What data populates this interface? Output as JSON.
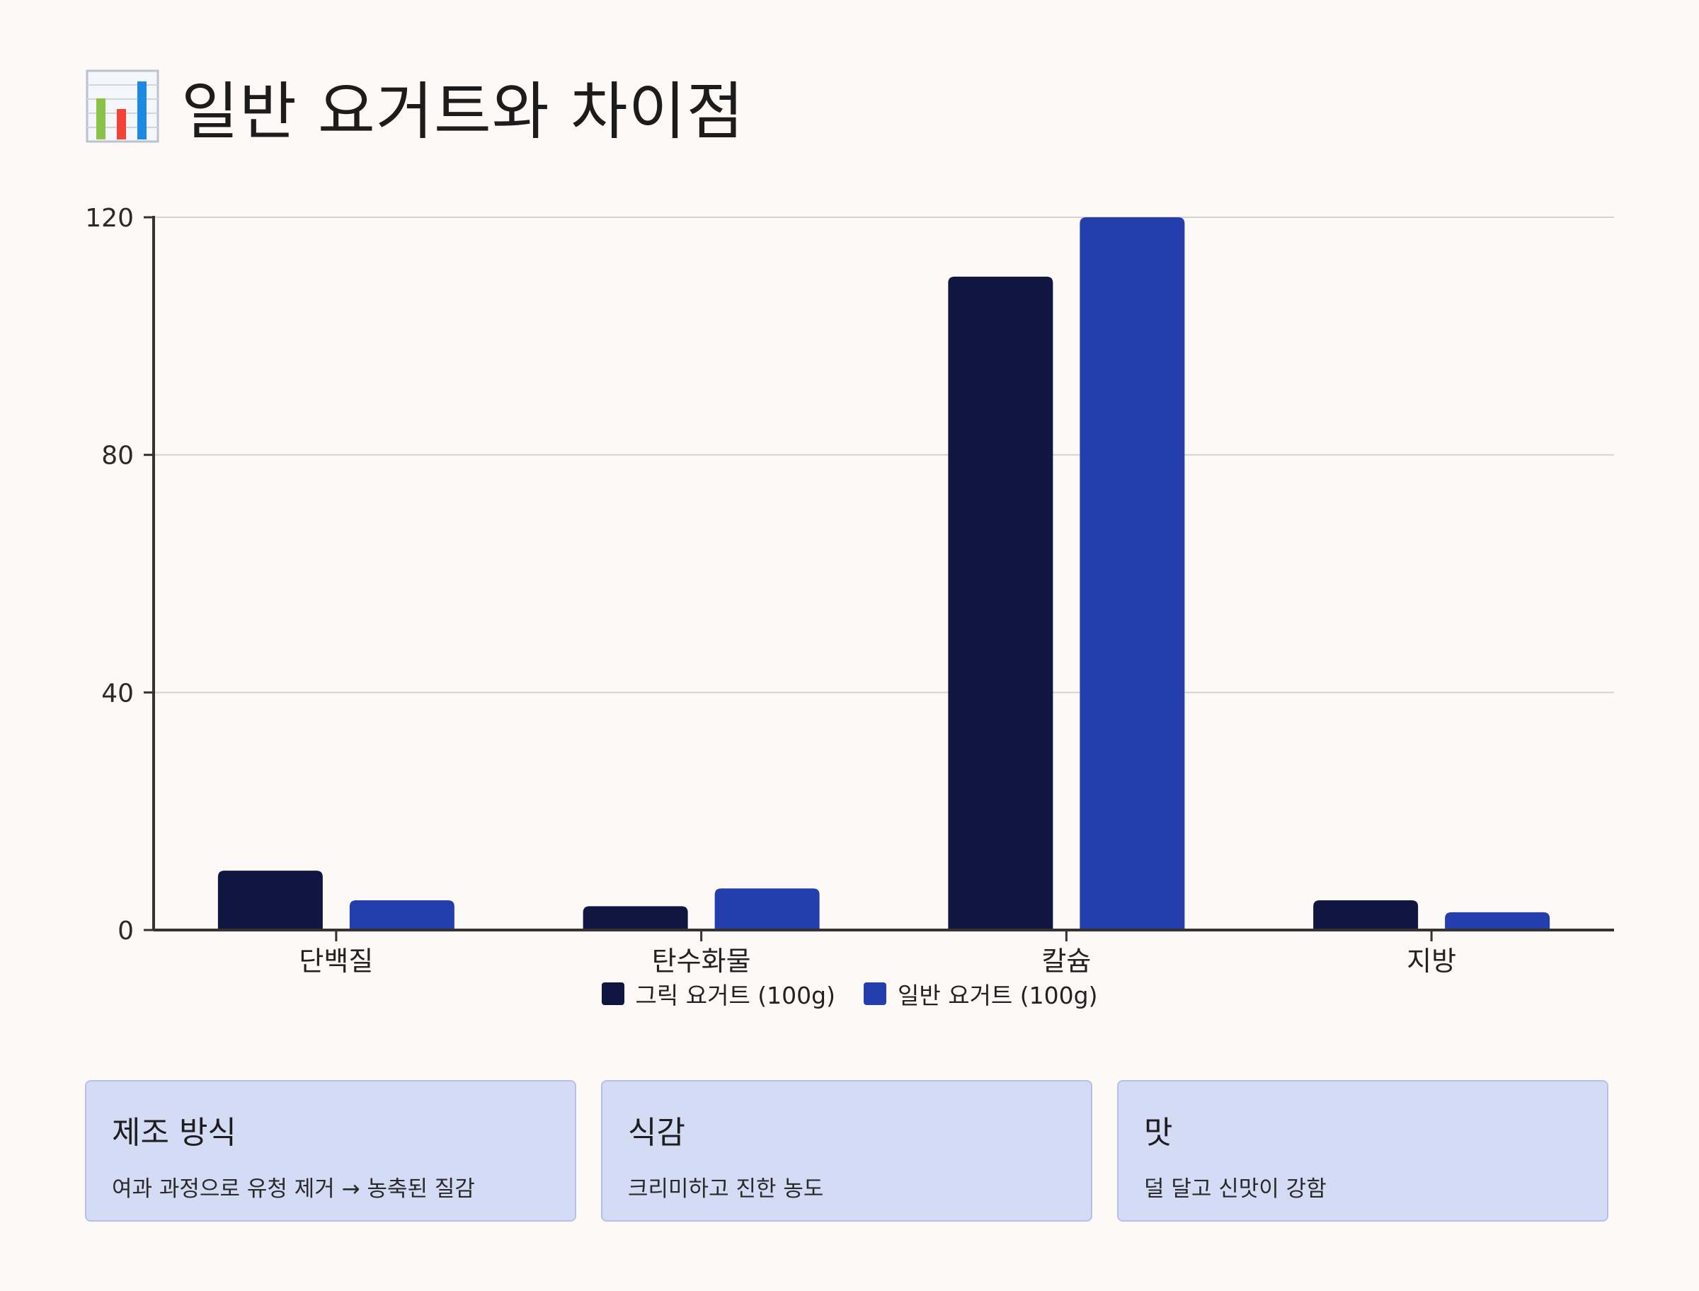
{
  "header": {
    "icon": "bar-chart-icon",
    "title": "일반 요거트와 차이점"
  },
  "chart_data": {
    "type": "bar",
    "categories": [
      "단백질",
      "탄수화물",
      "칼슘",
      "지방"
    ],
    "series": [
      {
        "name": "그릭 요거트 (100g)",
        "values": [
          10,
          4,
          110,
          5
        ],
        "color": "#0f1740"
      },
      {
        "name": "일반 요거트 (100g)",
        "values": [
          5,
          7,
          120,
          3
        ],
        "color": "#243eae"
      }
    ],
    "ylim": [
      0,
      120
    ],
    "yticks": [
      "0",
      "40",
      "80",
      "120"
    ],
    "grid": true,
    "legend": "bottom-center"
  },
  "cards": [
    {
      "title": "제조 방식",
      "desc": "여과 과정으로 유청 제거 → 농축된 질감"
    },
    {
      "title": "식감",
      "desc": "크리미하고 진한 농도"
    },
    {
      "title": "맛",
      "desc": "덜 달고 신맛이 강함"
    }
  ]
}
